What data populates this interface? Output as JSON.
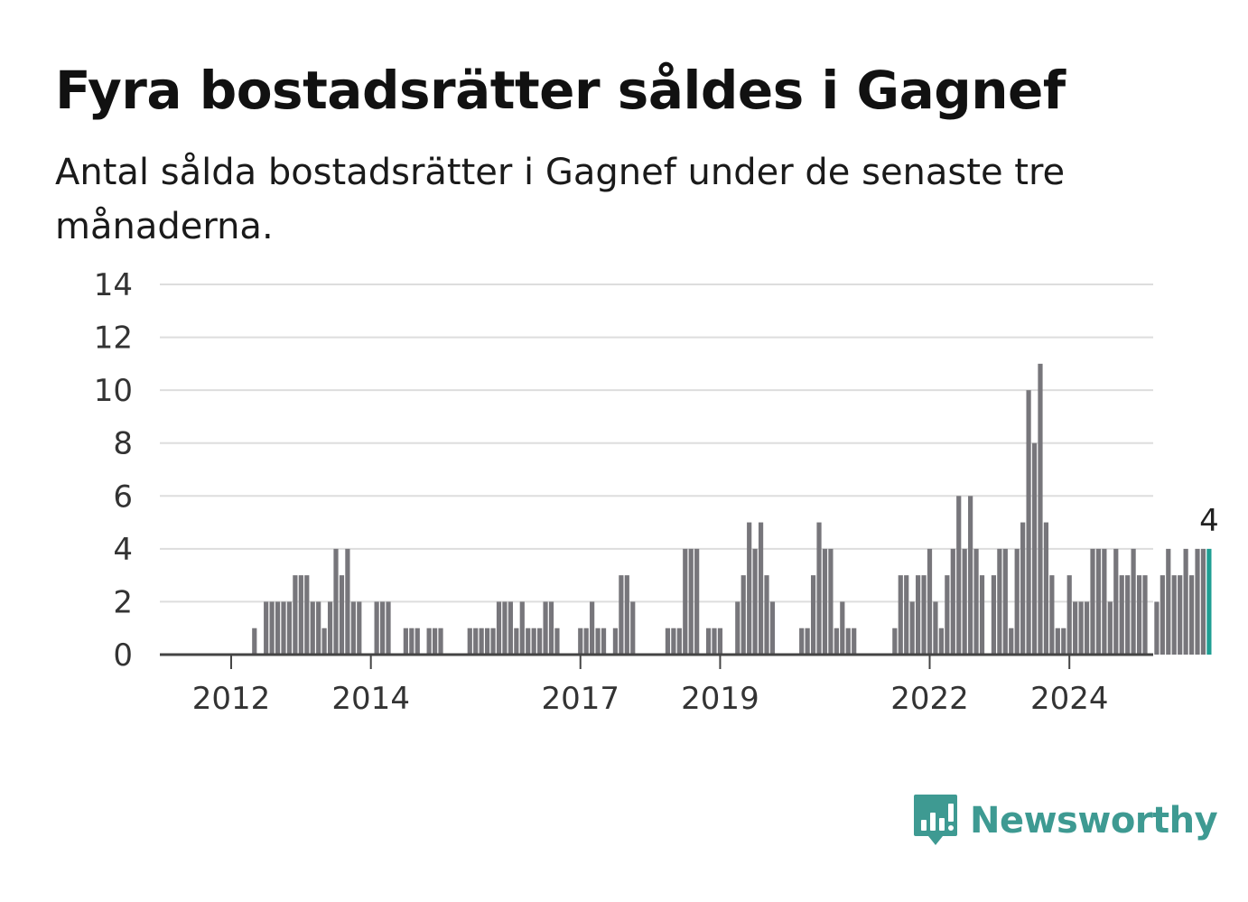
{
  "title": "Fyra bostadsrätter såldes i Gagnef",
  "subtitle": "Antal sålda bostadsrätter i Gagnef under de senaste tre månaderna.",
  "brand": {
    "name": "Newsworthy",
    "icon": "newsworthy-logo-icon",
    "color": "#3e9a92"
  },
  "colors": {
    "bar": "#77767b",
    "highlight": "#1f9e93",
    "grid": "#dddddd",
    "axis": "#444444"
  },
  "chart_data": {
    "type": "bar",
    "grid": true,
    "ylim": [
      0,
      14
    ],
    "y_ticks": [
      0,
      2,
      4,
      6,
      8,
      10,
      12,
      14
    ],
    "x_ticks": [
      "2012",
      "2014",
      "2017",
      "2019",
      "2022",
      "2024"
    ],
    "start_month": "2011-09",
    "values": [
      0,
      0,
      0,
      0,
      0,
      0,
      0,
      0,
      1,
      0,
      2,
      2,
      2,
      2,
      2,
      3,
      3,
      3,
      2,
      2,
      1,
      2,
      4,
      3,
      4,
      2,
      2,
      0,
      0,
      2,
      2,
      2,
      0,
      0,
      1,
      1,
      1,
      0,
      1,
      1,
      1,
      0,
      0,
      0,
      0,
      1,
      1,
      1,
      1,
      1,
      2,
      2,
      2,
      1,
      2,
      1,
      1,
      1,
      2,
      2,
      1,
      0,
      0,
      0,
      1,
      1,
      2,
      1,
      1,
      0,
      1,
      3,
      3,
      2,
      0,
      0,
      0,
      0,
      0,
      1,
      1,
      1,
      4,
      4,
      4,
      0,
      1,
      1,
      1,
      0,
      0,
      2,
      3,
      5,
      4,
      5,
      3,
      2,
      0,
      0,
      0,
      0,
      1,
      1,
      3,
      5,
      4,
      4,
      1,
      2,
      1,
      1,
      0,
      0,
      0,
      0,
      0,
      0,
      1,
      3,
      3,
      2,
      3,
      3,
      4,
      2,
      1,
      3,
      4,
      6,
      4,
      6,
      4,
      3,
      0,
      3,
      4,
      4,
      1,
      4,
      5,
      10,
      8,
      11,
      5,
      3,
      1,
      1,
      3,
      2,
      2,
      2,
      4,
      4,
      4,
      2,
      4,
      3,
      3,
      4,
      3,
      3,
      0,
      2,
      3,
      4,
      3,
      3,
      4,
      3,
      4,
      4,
      4
    ],
    "highlight_label": "4"
  }
}
